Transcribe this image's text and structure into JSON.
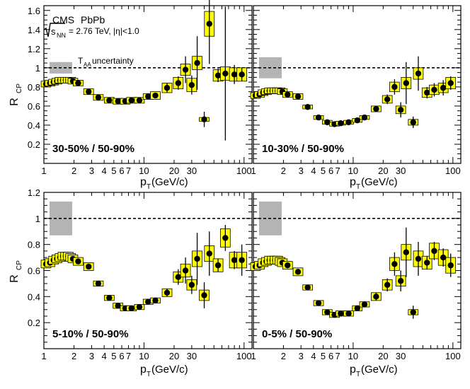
{
  "chart_data": {
    "type": "scatter",
    "experiment_label": "CMS",
    "system_label": "PbPb",
    "energy_label": "= 2.76 TeV, |η|<1.0",
    "uncertainty_label": "T",
    "uncertainty_label_sub": "AA",
    "uncertainty_label_rest": " uncertainty",
    "ylabel": "R",
    "ylabel_sub": "CP",
    "xlabel": "p",
    "xlabel_sub": "T",
    "xlabel_unit": " (GeV/c)",
    "x_scale": "log",
    "xlim": [
      1,
      120
    ],
    "x_ticklabels": [
      "1",
      "2",
      "3",
      "4",
      "5",
      "6",
      "7",
      "10",
      "20",
      "30",
      "100"
    ],
    "reference_line": 1.0,
    "colors": {
      "marker": "#000000",
      "syst_box": "#ffff00",
      "taa_band": "#b4b4b4"
    },
    "panels": [
      {
        "name": "30-50%",
        "label": "30-50% / 50-90%",
        "ylim": [
          0,
          1.65
        ],
        "y_ticklabels": [
          "0.2",
          "0.4",
          "0.6",
          "0.8",
          "1",
          "1.2",
          "1.4",
          "1.6"
        ],
        "taa_band": [
          0.94,
          1.06
        ],
        "x": [
          1.05,
          1.15,
          1.25,
          1.35,
          1.45,
          1.55,
          1.65,
          1.75,
          1.85,
          1.95,
          2.2,
          2.8,
          3.5,
          4.5,
          5.5,
          6.5,
          7.5,
          9.0,
          11,
          13,
          17,
          22,
          26,
          30,
          34,
          40,
          45,
          55,
          65,
          80,
          95
        ],
        "y": [
          0.83,
          0.84,
          0.85,
          0.86,
          0.87,
          0.87,
          0.87,
          0.87,
          0.87,
          0.86,
          0.84,
          0.75,
          0.69,
          0.66,
          0.65,
          0.65,
          0.66,
          0.66,
          0.7,
          0.71,
          0.79,
          0.84,
          0.98,
          0.82,
          1.05,
          0.46,
          1.46,
          0.92,
          0.94,
          0.93,
          0.93
        ],
        "stat": [
          0.01,
          0.01,
          0.01,
          0.01,
          0.01,
          0.01,
          0.01,
          0.01,
          0.01,
          0.01,
          0.01,
          0.01,
          0.01,
          0.01,
          0.01,
          0.01,
          0.01,
          0.01,
          0.02,
          0.02,
          0.05,
          0.07,
          0.14,
          0.1,
          0.28,
          0.08,
          0.42,
          0.07,
          0.7,
          0.1,
          0.07
        ],
        "syst": [
          0.03,
          0.03,
          0.03,
          0.03,
          0.03,
          0.03,
          0.03,
          0.03,
          0.03,
          0.03,
          0.03,
          0.03,
          0.03,
          0.03,
          0.03,
          0.03,
          0.03,
          0.03,
          0.03,
          0.04,
          0.05,
          0.06,
          0.06,
          0.07,
          0.07,
          0.02,
          0.13,
          0.06,
          0.07,
          0.07,
          0.07
        ]
      },
      {
        "name": "10-30%",
        "label": "10-30% / 50-90%",
        "ylim": [
          0,
          1.65
        ],
        "y_ticklabels": [
          "0.2",
          "0.4",
          "0.6",
          "0.8",
          "1",
          "1.2",
          "1.4",
          "1.6"
        ],
        "taa_band": [
          0.89,
          1.11
        ],
        "x": [
          1.05,
          1.15,
          1.25,
          1.35,
          1.45,
          1.55,
          1.65,
          1.75,
          1.85,
          1.95,
          2.2,
          2.8,
          3.5,
          4.5,
          5.5,
          6.5,
          7.5,
          9.0,
          11,
          13,
          17,
          22,
          26,
          30,
          34,
          40,
          45,
          55,
          65,
          80,
          95
        ],
        "y": [
          0.71,
          0.72,
          0.74,
          0.75,
          0.76,
          0.76,
          0.76,
          0.76,
          0.76,
          0.75,
          0.72,
          0.7,
          0.59,
          0.48,
          0.43,
          0.41,
          0.42,
          0.43,
          0.45,
          0.48,
          0.57,
          0.67,
          0.8,
          0.56,
          0.84,
          0.43,
          0.94,
          0.74,
          0.77,
          0.79,
          0.84
        ],
        "stat": [
          0.01,
          0.01,
          0.01,
          0.01,
          0.01,
          0.01,
          0.01,
          0.01,
          0.01,
          0.01,
          0.01,
          0.01,
          0.01,
          0.01,
          0.01,
          0.01,
          0.01,
          0.01,
          0.02,
          0.02,
          0.03,
          0.05,
          0.08,
          0.08,
          0.22,
          0.06,
          0.18,
          0.06,
          0.07,
          0.08,
          0.07
        ],
        "syst": [
          0.03,
          0.03,
          0.03,
          0.03,
          0.03,
          0.03,
          0.03,
          0.03,
          0.03,
          0.03,
          0.03,
          0.03,
          0.02,
          0.02,
          0.02,
          0.02,
          0.02,
          0.02,
          0.02,
          0.02,
          0.03,
          0.04,
          0.05,
          0.04,
          0.06,
          0.03,
          0.06,
          0.05,
          0.05,
          0.05,
          0.06
        ]
      },
      {
        "name": "5-10%",
        "label": "5-10% / 50-90%",
        "ylim": [
          0,
          1.2
        ],
        "y_ticklabels": [
          "0.2",
          "0.4",
          "0.6",
          "0.8",
          "1",
          "1.2"
        ],
        "taa_band": [
          0.87,
          1.13
        ],
        "x": [
          1.05,
          1.15,
          1.25,
          1.35,
          1.45,
          1.55,
          1.65,
          1.75,
          1.85,
          1.95,
          2.2,
          2.8,
          3.5,
          4.5,
          5.5,
          6.5,
          7.5,
          9.0,
          11,
          13,
          17,
          22,
          26,
          30,
          34,
          40,
          45,
          55,
          65,
          80,
          95
        ],
        "y": [
          0.65,
          0.66,
          0.68,
          0.69,
          0.7,
          0.71,
          0.71,
          0.71,
          0.7,
          0.69,
          0.67,
          0.63,
          0.5,
          0.39,
          0.33,
          0.31,
          0.31,
          0.32,
          0.36,
          0.37,
          0.43,
          0.55,
          0.6,
          0.49,
          0.69,
          0.41,
          0.73,
          0.64,
          0.85,
          0.68,
          0.68
        ],
        "stat": [
          0.01,
          0.01,
          0.01,
          0.01,
          0.01,
          0.01,
          0.01,
          0.01,
          0.01,
          0.01,
          0.01,
          0.01,
          0.01,
          0.01,
          0.01,
          0.01,
          0.01,
          0.01,
          0.02,
          0.02,
          0.03,
          0.06,
          0.1,
          0.07,
          0.2,
          0.1,
          0.17,
          0.05,
          0.1,
          0.07,
          0.12
        ],
        "syst": [
          0.03,
          0.03,
          0.03,
          0.03,
          0.03,
          0.03,
          0.03,
          0.03,
          0.03,
          0.03,
          0.03,
          0.03,
          0.02,
          0.02,
          0.02,
          0.02,
          0.02,
          0.02,
          0.02,
          0.02,
          0.03,
          0.04,
          0.05,
          0.04,
          0.06,
          0.04,
          0.06,
          0.05,
          0.07,
          0.06,
          0.06
        ]
      },
      {
        "name": "0-5%",
        "label": "0-5% / 50-90%",
        "ylim": [
          0,
          1.2
        ],
        "y_ticklabels": [
          "0.2",
          "0.4",
          "0.6",
          "0.8",
          "1",
          "1.2"
        ],
        "taa_band": [
          0.87,
          1.13
        ],
        "x": [
          1.05,
          1.15,
          1.25,
          1.35,
          1.45,
          1.55,
          1.65,
          1.75,
          1.85,
          1.95,
          2.2,
          2.8,
          3.5,
          4.5,
          5.5,
          6.5,
          7.5,
          9.0,
          11,
          13,
          17,
          22,
          26,
          30,
          34,
          40,
          45,
          55,
          65,
          80,
          95
        ],
        "y": [
          0.63,
          0.64,
          0.66,
          0.67,
          0.68,
          0.68,
          0.68,
          0.68,
          0.67,
          0.66,
          0.64,
          0.59,
          0.47,
          0.35,
          0.28,
          0.26,
          0.27,
          0.27,
          0.31,
          0.34,
          0.4,
          0.49,
          0.65,
          0.52,
          0.74,
          0.28,
          0.69,
          0.66,
          0.75,
          0.7,
          0.64
        ],
        "stat": [
          0.01,
          0.01,
          0.01,
          0.01,
          0.01,
          0.01,
          0.01,
          0.01,
          0.01,
          0.01,
          0.01,
          0.01,
          0.01,
          0.01,
          0.01,
          0.01,
          0.01,
          0.01,
          0.02,
          0.02,
          0.03,
          0.05,
          0.09,
          0.08,
          0.19,
          0.05,
          0.13,
          0.05,
          0.07,
          0.07,
          0.09
        ],
        "syst": [
          0.03,
          0.03,
          0.03,
          0.03,
          0.03,
          0.03,
          0.03,
          0.03,
          0.03,
          0.03,
          0.03,
          0.03,
          0.02,
          0.02,
          0.02,
          0.02,
          0.02,
          0.02,
          0.02,
          0.02,
          0.03,
          0.04,
          0.05,
          0.04,
          0.06,
          0.02,
          0.06,
          0.05,
          0.06,
          0.06,
          0.06
        ]
      }
    ]
  }
}
